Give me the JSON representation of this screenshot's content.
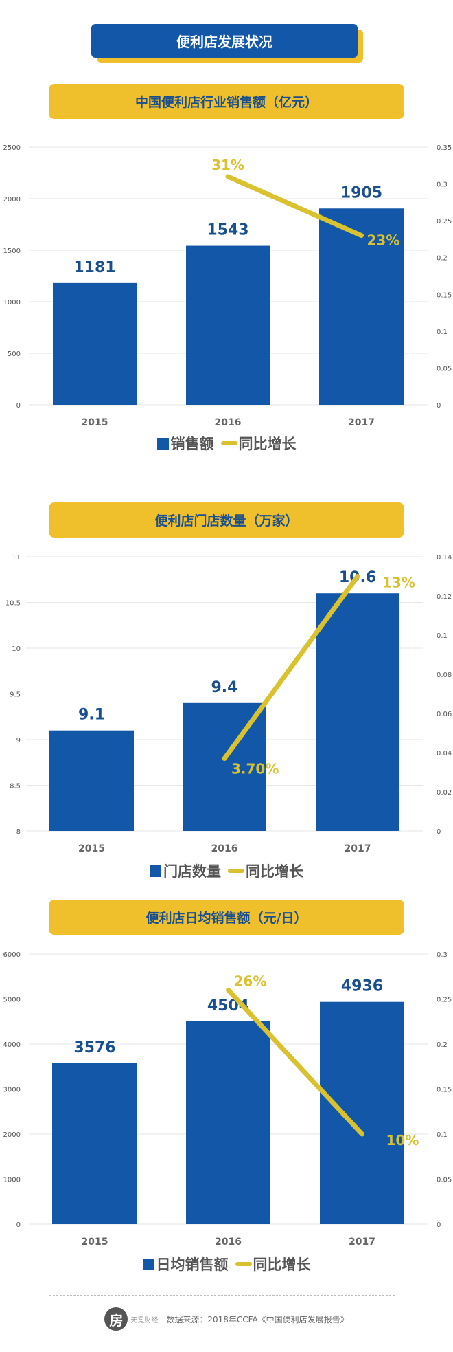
{
  "header": {
    "title": "便利店发展状况"
  },
  "colors": {
    "bar": "#1358a8",
    "line": "#d9c12f",
    "title_bg": "#f0c02c",
    "title_text": "#1a4f8f"
  },
  "chart_data": [
    {
      "type": "bar+line",
      "title": "中国便利店行业销售额（亿元）",
      "categories": [
        "2015",
        "2016",
        "2017"
      ],
      "series": [
        {
          "name": "销售额",
          "type": "bar",
          "axis": "left",
          "values": [
            1181,
            1543,
            1905
          ],
          "labels": [
            "1181",
            "1543",
            "1905"
          ]
        },
        {
          "name": "同比增长",
          "type": "line",
          "axis": "right",
          "values": [
            null,
            0.31,
            0.23
          ],
          "labels": [
            "",
            "31%",
            "23%"
          ]
        }
      ],
      "ylim_left": [
        0,
        2500
      ],
      "yticks_left": [
        "0",
        "500",
        "1000",
        "1500",
        "2000",
        "2500"
      ],
      "ylim_right": [
        0,
        0.35
      ],
      "yticks_right": [
        "0",
        "0.05",
        "0.1",
        "0.15",
        "0.2",
        "0.25",
        "0.3",
        "0.35"
      ],
      "grid": true,
      "legend": "bottom"
    },
    {
      "type": "bar+line",
      "title": "便利店门店数量（万家）",
      "categories": [
        "2015",
        "2016",
        "2017"
      ],
      "series": [
        {
          "name": "门店数量",
          "type": "bar",
          "axis": "left",
          "values": [
            9.1,
            9.4,
            10.6
          ],
          "labels": [
            "9.1",
            "9.4",
            "10.6"
          ]
        },
        {
          "name": "同比增长",
          "type": "line",
          "axis": "right",
          "values": [
            null,
            0.037,
            0.13
          ],
          "labels": [
            "",
            "3.70%",
            "13%"
          ]
        }
      ],
      "ylim_left": [
        8,
        11
      ],
      "yticks_left": [
        "8",
        "8.5",
        "9",
        "9.5",
        "10",
        "10.5",
        "11"
      ],
      "ylim_right": [
        0,
        0.14
      ],
      "yticks_right": [
        "0",
        "0.02",
        "0.04",
        "0.06",
        "0.08",
        "0.1",
        "0.12",
        "0.14"
      ],
      "grid": true,
      "legend": "bottom"
    },
    {
      "type": "bar+line",
      "title": "便利店日均销售额（元/日）",
      "categories": [
        "2015",
        "2016",
        "2017"
      ],
      "series": [
        {
          "name": "日均销售额",
          "type": "bar",
          "axis": "left",
          "values": [
            3576,
            4504,
            4936
          ],
          "labels": [
            "3576",
            "4504",
            "4936"
          ]
        },
        {
          "name": "同比增长",
          "type": "line",
          "axis": "right",
          "values": [
            null,
            0.26,
            0.1
          ],
          "labels": [
            "",
            "26%",
            "10%"
          ]
        }
      ],
      "ylim_left": [
        0,
        6000
      ],
      "yticks_left": [
        "0",
        "1000",
        "2000",
        "3000",
        "4000",
        "5000",
        "6000"
      ],
      "ylim_right": [
        0,
        0.3
      ],
      "yticks_right": [
        "0",
        "0.05",
        "0.1",
        "0.15",
        "0.2",
        "0.25",
        "0.3"
      ],
      "grid": true,
      "legend": "bottom"
    }
  ],
  "footer": {
    "logo_text": "无冕财经",
    "source": "数据来源：2018年CCFA《中国便利店发展报告》"
  }
}
